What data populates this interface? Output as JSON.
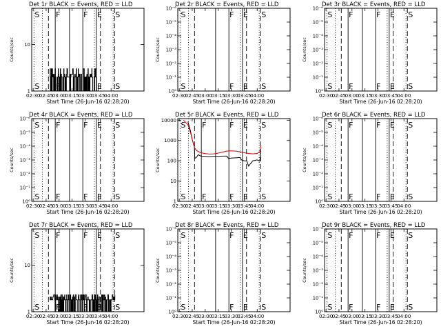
{
  "colors": {
    "events": "#000000",
    "lld": "#cc0000",
    "frame": "#000000",
    "background": "#ffffff"
  },
  "x_tick_labels": [
    "02:30",
    "02:45",
    "03:00",
    "03:15",
    "03:30",
    "03:45",
    "04:00"
  ],
  "xlabel": "Start Time (26-Jun-16 02:28:20)",
  "ylabel": "Counts/sec",
  "marker_legend": {
    "dotted": "S",
    "dashed": "F",
    "solid": "E"
  },
  "chart_data": [
    {
      "type": "line",
      "title": "Det 1r BLACK = Events, RED = LLD",
      "xlabel": "Start Time (26-Jun-16 02:28:20)",
      "ylabel": "Counts/sec",
      "y_tick_labels": [
        "1",
        "10"
      ],
      "ylim": [
        1,
        60
      ],
      "yscale": "log",
      "xlim": [
        "02:28:20",
        "04:38:00"
      ],
      "vlines": [
        {
          "time": "02:31:00",
          "style": "dotted",
          "letter": "S"
        },
        {
          "time": "02:40:40",
          "style": "dotted",
          "letter": ""
        },
        {
          "time": "02:47:40",
          "style": "dashed",
          "letter": ""
        },
        {
          "time": "02:55:30",
          "style": "solid",
          "letter": "F"
        },
        {
          "time": "03:12:00",
          "style": "solid",
          "letter": ""
        },
        {
          "time": "03:27:20",
          "style": "solid",
          "letter": "F"
        },
        {
          "time": "03:40:40",
          "style": "dotted",
          "letter": ""
        },
        {
          "time": "03:43:00",
          "style": "solid",
          "letter": "E"
        },
        {
          "time": "03:47:40",
          "style": "dashed",
          "letter": ""
        },
        {
          "time": "04:02:20",
          "style": "dotted",
          "letter": ""
        },
        {
          "time": "04:04:00",
          "style": "dashed",
          "letter": "S"
        }
      ],
      "series": [
        {
          "color": "#000000",
          "style": "noise",
          "x_start": "02:49:20",
          "x_end": "03:43:20",
          "y_low": 1.0,
          "y_high": 3.0,
          "y_base": 2.0
        }
      ]
    },
    {
      "type": "line",
      "title": "Det 2r BLACK = Events, RED = LLD",
      "xlabel": "Start Time (26-Jun-16 02:28:20)",
      "ylabel": "Counts/sec",
      "y_tick_labels": [
        "10⁰",
        "10⁻¹",
        "10⁻²",
        "10⁻³",
        "10⁻⁴",
        "10⁻⁵",
        "10⁻⁶"
      ],
      "ylim": [
        0,
        6
      ],
      "yscale": "log",
      "xlim": [
        "02:28:20",
        "04:38:00"
      ],
      "vlines": [
        {
          "time": "02:31:00",
          "style": "dotted",
          "letter": "S"
        },
        {
          "time": "02:40:40",
          "style": "dotted",
          "letter": ""
        },
        {
          "time": "02:47:40",
          "style": "dashed",
          "letter": ""
        },
        {
          "time": "03:12:00",
          "style": "solid",
          "letter": ""
        },
        {
          "time": "03:27:20",
          "style": "solid",
          "letter": "F"
        },
        {
          "time": "03:40:40",
          "style": "dotted",
          "letter": ""
        },
        {
          "time": "03:43:00",
          "style": "solid",
          "letter": "E"
        },
        {
          "time": "03:47:40",
          "style": "dashed",
          "letter": ""
        },
        {
          "time": "04:02:20",
          "style": "dotted",
          "letter": ""
        },
        {
          "time": "04:04:00",
          "style": "dashed",
          "letter": "S"
        }
      ],
      "series": []
    },
    {
      "type": "line",
      "title": "Det 3r BLACK = Events, RED = LLD",
      "xlabel": "Start Time (26-Jun-16 02:28:20)",
      "ylabel": "Counts/sec",
      "y_tick_labels": [
        "10⁰",
        "10⁻¹",
        "10⁻²",
        "10⁻³",
        "10⁻⁴",
        "10⁻⁵",
        "10⁻⁶"
      ],
      "ylim": [
        0,
        6
      ],
      "yscale": "log",
      "xlim": [
        "02:28:20",
        "04:38:00"
      ],
      "vlines": [
        {
          "time": "02:31:00",
          "style": "dotted",
          "letter": "S"
        },
        {
          "time": "02:40:40",
          "style": "dotted",
          "letter": ""
        },
        {
          "time": "02:47:40",
          "style": "dashed",
          "letter": ""
        },
        {
          "time": "02:55:30",
          "style": "solid",
          "letter": "F"
        },
        {
          "time": "03:12:00",
          "style": "solid",
          "letter": ""
        },
        {
          "time": "03:27:20",
          "style": "solid",
          "letter": "F"
        },
        {
          "time": "03:40:40",
          "style": "dotted",
          "letter": ""
        },
        {
          "time": "03:43:00",
          "style": "solid",
          "letter": "E"
        },
        {
          "time": "03:47:40",
          "style": "dashed",
          "letter": ""
        },
        {
          "time": "04:02:20",
          "style": "dotted",
          "letter": ""
        },
        {
          "time": "04:04:00",
          "style": "dashed",
          "letter": "S"
        }
      ],
      "series": []
    },
    {
      "type": "line",
      "title": "Det 4r BLACK = Events, RED = LLD",
      "xlabel": "Start Time (26-Jun-16 02:28:20)",
      "ylabel": "Counts/sec",
      "y_tick_labels": [
        "10⁰",
        "10⁻¹",
        "10⁻²",
        "10⁻³",
        "10⁻⁴",
        "10⁻⁵",
        "10⁻⁶"
      ],
      "ylim": [
        0,
        6
      ],
      "yscale": "log",
      "xlim": [
        "02:28:20",
        "04:38:00"
      ],
      "vlines": [
        {
          "time": "02:31:00",
          "style": "dotted",
          "letter": "S"
        },
        {
          "time": "02:40:40",
          "style": "dotted",
          "letter": ""
        },
        {
          "time": "02:47:40",
          "style": "dashed",
          "letter": ""
        },
        {
          "time": "02:55:30",
          "style": "solid",
          "letter": "F"
        },
        {
          "time": "03:12:00",
          "style": "solid",
          "letter": ""
        },
        {
          "time": "03:27:20",
          "style": "solid",
          "letter": "F"
        },
        {
          "time": "03:40:40",
          "style": "dotted",
          "letter": ""
        },
        {
          "time": "03:43:00",
          "style": "solid",
          "letter": "E"
        },
        {
          "time": "03:47:40",
          "style": "dashed",
          "letter": ""
        },
        {
          "time": "04:02:20",
          "style": "dotted",
          "letter": ""
        },
        {
          "time": "04:04:00",
          "style": "dashed",
          "letter": "S"
        }
      ],
      "series": []
    },
    {
      "type": "line",
      "title": "Det 5r BLACK = Events, RED = LLD",
      "xlabel": "Start Time (26-Jun-16 02:28:20)",
      "ylabel": "Counts/sec",
      "y_tick_labels": [
        "1",
        "10",
        "100",
        "1000",
        "10000"
      ],
      "ylim": [
        1,
        12000
      ],
      "yscale": "log",
      "xlim": [
        "02:28:20",
        "04:38:00"
      ],
      "vlines": [
        {
          "time": "02:31:00",
          "style": "dotted",
          "letter": "S"
        },
        {
          "time": "02:40:40",
          "style": "dotted",
          "letter": ""
        },
        {
          "time": "02:47:40",
          "style": "dashed",
          "letter": ""
        },
        {
          "time": "02:55:30",
          "style": "solid",
          "letter": "F"
        },
        {
          "time": "03:12:00",
          "style": "solid",
          "letter": ""
        },
        {
          "time": "03:27:20",
          "style": "solid",
          "letter": "F"
        },
        {
          "time": "03:40:40",
          "style": "dotted",
          "letter": ""
        },
        {
          "time": "03:43:00",
          "style": "solid",
          "letter": "E"
        },
        {
          "time": "03:47:40",
          "style": "dashed",
          "letter": ""
        },
        {
          "time": "04:02:20",
          "style": "dotted",
          "letter": ""
        },
        {
          "time": "04:04:00",
          "style": "dashed",
          "letter": "S"
        }
      ],
      "series": [
        {
          "color": "#000000",
          "style": "line",
          "x": [
            "02:40:00",
            "02:43:00",
            "02:45:00",
            "02:47:30",
            "02:48:00",
            "02:50:00",
            "02:52:00",
            "02:55:00",
            "03:00:00",
            "03:05:00",
            "03:10:00",
            "03:15:00",
            "03:20:00",
            "03:25:00",
            "03:27:00",
            "03:30:00",
            "03:35:00",
            "03:40:00",
            "03:42:00",
            "03:45:00",
            "03:48:00",
            "03:50:00",
            "03:55:00",
            "04:00:00",
            "04:03:00",
            "04:04:20"
          ],
          "y": [
            8500,
            3000,
            1100,
            500,
            130,
            150,
            200,
            170,
            165,
            160,
            165,
            165,
            170,
            170,
            130,
            135,
            140,
            145,
            110,
            100,
            100,
            55,
            100,
            110,
            95,
            300
          ]
        },
        {
          "color": "#cc0000",
          "style": "line",
          "x": [
            "02:35:00",
            "02:40:00",
            "02:43:00",
            "02:45:00",
            "02:47:30",
            "02:50:00",
            "02:55:00",
            "03:00:00",
            "03:05:00",
            "03:10:00",
            "03:15:00",
            "03:20:00",
            "03:25:00",
            "03:30:00",
            "03:35:00",
            "03:40:00",
            "03:45:00",
            "03:50:00",
            "03:55:00",
            "04:00:00",
            "04:03:00",
            "04:04:20"
          ],
          "y": [
            10000,
            6000,
            2500,
            1100,
            450,
            320,
            250,
            225,
            215,
            220,
            240,
            270,
            300,
            310,
            300,
            280,
            250,
            230,
            220,
            230,
            280,
            550
          ]
        }
      ]
    },
    {
      "type": "line",
      "title": "Det 6r BLACK = Events, RED = LLD",
      "xlabel": "Start Time (26-Jun-16 02:28:20)",
      "ylabel": "Counts/sec",
      "y_tick_labels": [
        "10⁰",
        "10⁻¹",
        "10⁻²",
        "10⁻³",
        "10⁻⁴",
        "10⁻⁵",
        "10⁻⁶"
      ],
      "ylim": [
        0,
        6
      ],
      "yscale": "log",
      "xlim": [
        "02:28:20",
        "04:38:00"
      ],
      "vlines": [
        {
          "time": "02:31:00",
          "style": "dotted",
          "letter": "S"
        },
        {
          "time": "02:40:40",
          "style": "dotted",
          "letter": ""
        },
        {
          "time": "02:47:40",
          "style": "dashed",
          "letter": ""
        },
        {
          "time": "02:55:30",
          "style": "solid",
          "letter": "F"
        },
        {
          "time": "03:12:00",
          "style": "solid",
          "letter": ""
        },
        {
          "time": "03:27:20",
          "style": "solid",
          "letter": "F"
        },
        {
          "time": "03:40:40",
          "style": "dotted",
          "letter": ""
        },
        {
          "time": "03:43:00",
          "style": "solid",
          "letter": "E"
        },
        {
          "time": "03:47:40",
          "style": "dashed",
          "letter": ""
        },
        {
          "time": "04:02:20",
          "style": "dotted",
          "letter": ""
        },
        {
          "time": "04:04:00",
          "style": "dashed",
          "letter": "S"
        }
      ],
      "series": []
    },
    {
      "type": "line",
      "title": "Det 7r BLACK = Events, RED = LLD",
      "xlabel": "Start Time (26-Jun-16 02:28:20)",
      "ylabel": "Counts/sec",
      "y_tick_labels": [
        "1",
        "10"
      ],
      "ylim": [
        1,
        60
      ],
      "yscale": "log",
      "xlim": [
        "02:28:20",
        "04:38:00"
      ],
      "vlines": [
        {
          "time": "02:31:00",
          "style": "dotted",
          "letter": "S"
        },
        {
          "time": "02:40:40",
          "style": "dotted",
          "letter": ""
        },
        {
          "time": "02:47:40",
          "style": "dashed",
          "letter": ""
        },
        {
          "time": "02:55:30",
          "style": "solid",
          "letter": "F"
        },
        {
          "time": "03:12:00",
          "style": "solid",
          "letter": ""
        },
        {
          "time": "03:27:20",
          "style": "solid",
          "letter": "F"
        },
        {
          "time": "03:40:40",
          "style": "dotted",
          "letter": ""
        },
        {
          "time": "03:43:00",
          "style": "solid",
          "letter": "E"
        },
        {
          "time": "03:47:40",
          "style": "dashed",
          "letter": ""
        },
        {
          "time": "04:02:20",
          "style": "dotted",
          "letter": ""
        },
        {
          "time": "04:04:00",
          "style": "dashed",
          "letter": "S"
        }
      ],
      "series": [
        {
          "color": "#000000",
          "style": "noise",
          "x_start": "02:49:20",
          "x_end": "04:04:20",
          "y_low": 1.0,
          "y_high": 2.3,
          "y_base": 1.8
        }
      ]
    },
    {
      "type": "line",
      "title": "Det 8r BLACK = Events, RED = LLD",
      "xlabel": "Start Time (26-Jun-16 02:28:20)",
      "ylabel": "Counts/sec",
      "y_tick_labels": [
        "10⁰",
        "10⁻¹",
        "10⁻²",
        "10⁻³",
        "10⁻⁴",
        "10⁻⁵",
        "10⁻⁶"
      ],
      "ylim": [
        0,
        6
      ],
      "yscale": "log",
      "xlim": [
        "02:28:20",
        "04:38:00"
      ],
      "vlines": [
        {
          "time": "02:31:00",
          "style": "dotted",
          "letter": "S"
        },
        {
          "time": "02:40:40",
          "style": "dotted",
          "letter": ""
        },
        {
          "time": "02:47:40",
          "style": "dashed",
          "letter": ""
        },
        {
          "time": "03:12:00",
          "style": "solid",
          "letter": ""
        },
        {
          "time": "03:27:20",
          "style": "solid",
          "letter": "F"
        },
        {
          "time": "03:40:40",
          "style": "dotted",
          "letter": ""
        },
        {
          "time": "03:43:00",
          "style": "solid",
          "letter": "E"
        },
        {
          "time": "03:47:40",
          "style": "dashed",
          "letter": ""
        },
        {
          "time": "04:02:20",
          "style": "dotted",
          "letter": ""
        },
        {
          "time": "04:04:00",
          "style": "dashed",
          "letter": "S"
        }
      ],
      "series": []
    },
    {
      "type": "line",
      "title": "Det 9r BLACK = Events, RED = LLD",
      "xlabel": "Start Time (26-Jun-16 02:28:20)",
      "ylabel": "Counts/sec",
      "y_tick_labels": [
        "10⁰",
        "10⁻¹",
        "10⁻²",
        "10⁻³",
        "10⁻⁴",
        "10⁻⁵",
        "10⁻⁶"
      ],
      "ylim": [
        0,
        6
      ],
      "yscale": "log",
      "xlim": [
        "02:28:20",
        "04:38:00"
      ],
      "vlines": [
        {
          "time": "02:31:00",
          "style": "dotted",
          "letter": "S"
        },
        {
          "time": "02:40:40",
          "style": "dotted",
          "letter": ""
        },
        {
          "time": "02:47:40",
          "style": "dashed",
          "letter": ""
        },
        {
          "time": "02:55:30",
          "style": "solid",
          "letter": "F"
        },
        {
          "time": "03:12:00",
          "style": "solid",
          "letter": ""
        },
        {
          "time": "03:27:20",
          "style": "solid",
          "letter": "F"
        },
        {
          "time": "03:40:40",
          "style": "dotted",
          "letter": ""
        },
        {
          "time": "03:43:00",
          "style": "solid",
          "letter": "E"
        },
        {
          "time": "03:47:40",
          "style": "dashed",
          "letter": ""
        },
        {
          "time": "04:02:20",
          "style": "dotted",
          "letter": ""
        },
        {
          "time": "04:04:00",
          "style": "dashed",
          "letter": "S"
        }
      ],
      "series": []
    }
  ]
}
